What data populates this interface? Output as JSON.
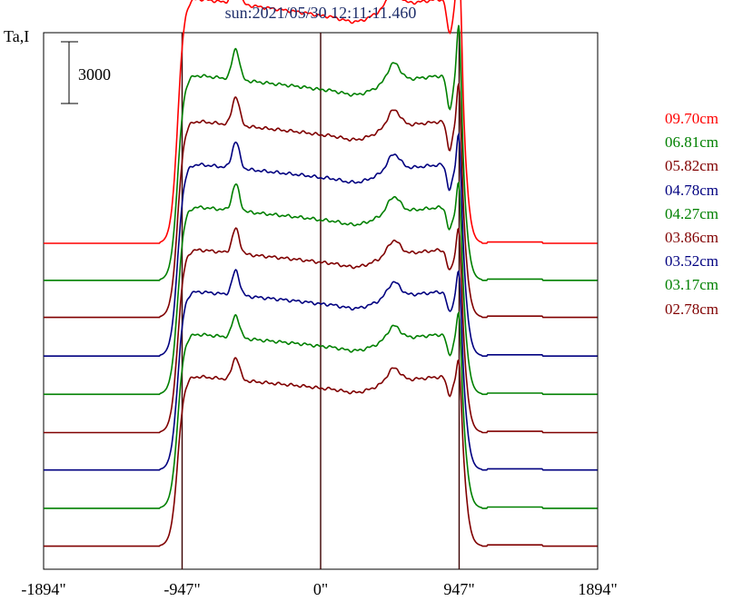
{
  "header": {
    "title": "sun:2021/05/30 12:11:11.460",
    "y_axis_label": "Ta,I"
  },
  "chart_data": {
    "type": "line",
    "title": "sun:2021/05/30 12:11:11.460",
    "ylabel": "Ta,I",
    "xlabel": "",
    "x_ticks": [
      -1894,
      -947,
      0,
      947,
      1894
    ],
    "x_tick_labels": [
      "-1894\"",
      "-947\"",
      "0\"",
      "947\"",
      "1894\""
    ],
    "xlim": [
      -1894,
      1894
    ],
    "vertical_lines": [
      -947,
      0,
      947
    ],
    "scale_bar": {
      "label": "3000",
      "value": 3000
    },
    "series": [
      {
        "name": "09.70cm",
        "color": "#ff0000",
        "base": 0,
        "disk": 11100,
        "limb_bump": 1300,
        "sharp_peak": 4500
      },
      {
        "name": "06.81cm",
        "color": "#008000",
        "base": 40,
        "disk": 9300,
        "limb_bump": 1500,
        "sharp_peak": 4300
      },
      {
        "name": "05.82cm",
        "color": "#800000",
        "base": 80,
        "disk": 8900,
        "limb_bump": 1400,
        "sharp_peak": 3600
      },
      {
        "name": "04.78cm",
        "color": "#000080",
        "base": 40,
        "disk": 8700,
        "limb_bump": 1300,
        "sharp_peak": 3200
      },
      {
        "name": "04.27cm",
        "color": "#008000",
        "base": 20,
        "disk": 8500,
        "limb_bump": 1300,
        "sharp_peak": 2900
      },
      {
        "name": "03.86cm",
        "color": "#800000",
        "base": 0,
        "disk": 8300,
        "limb_bump": 1200,
        "sharp_peak": 2700
      },
      {
        "name": "03.52cm",
        "color": "#000080",
        "base": 20,
        "disk": 8100,
        "limb_bump": 1200,
        "sharp_peak": 2600
      },
      {
        "name": "03.17cm",
        "color": "#008000",
        "base": 0,
        "disk": 7900,
        "limb_bump": 1100,
        "sharp_peak": 2600
      },
      {
        "name": "02.78cm",
        "color": "#800000",
        "base": 0,
        "disk": 7700,
        "limb_bump": 1100,
        "sharp_peak": 2300
      }
    ]
  }
}
